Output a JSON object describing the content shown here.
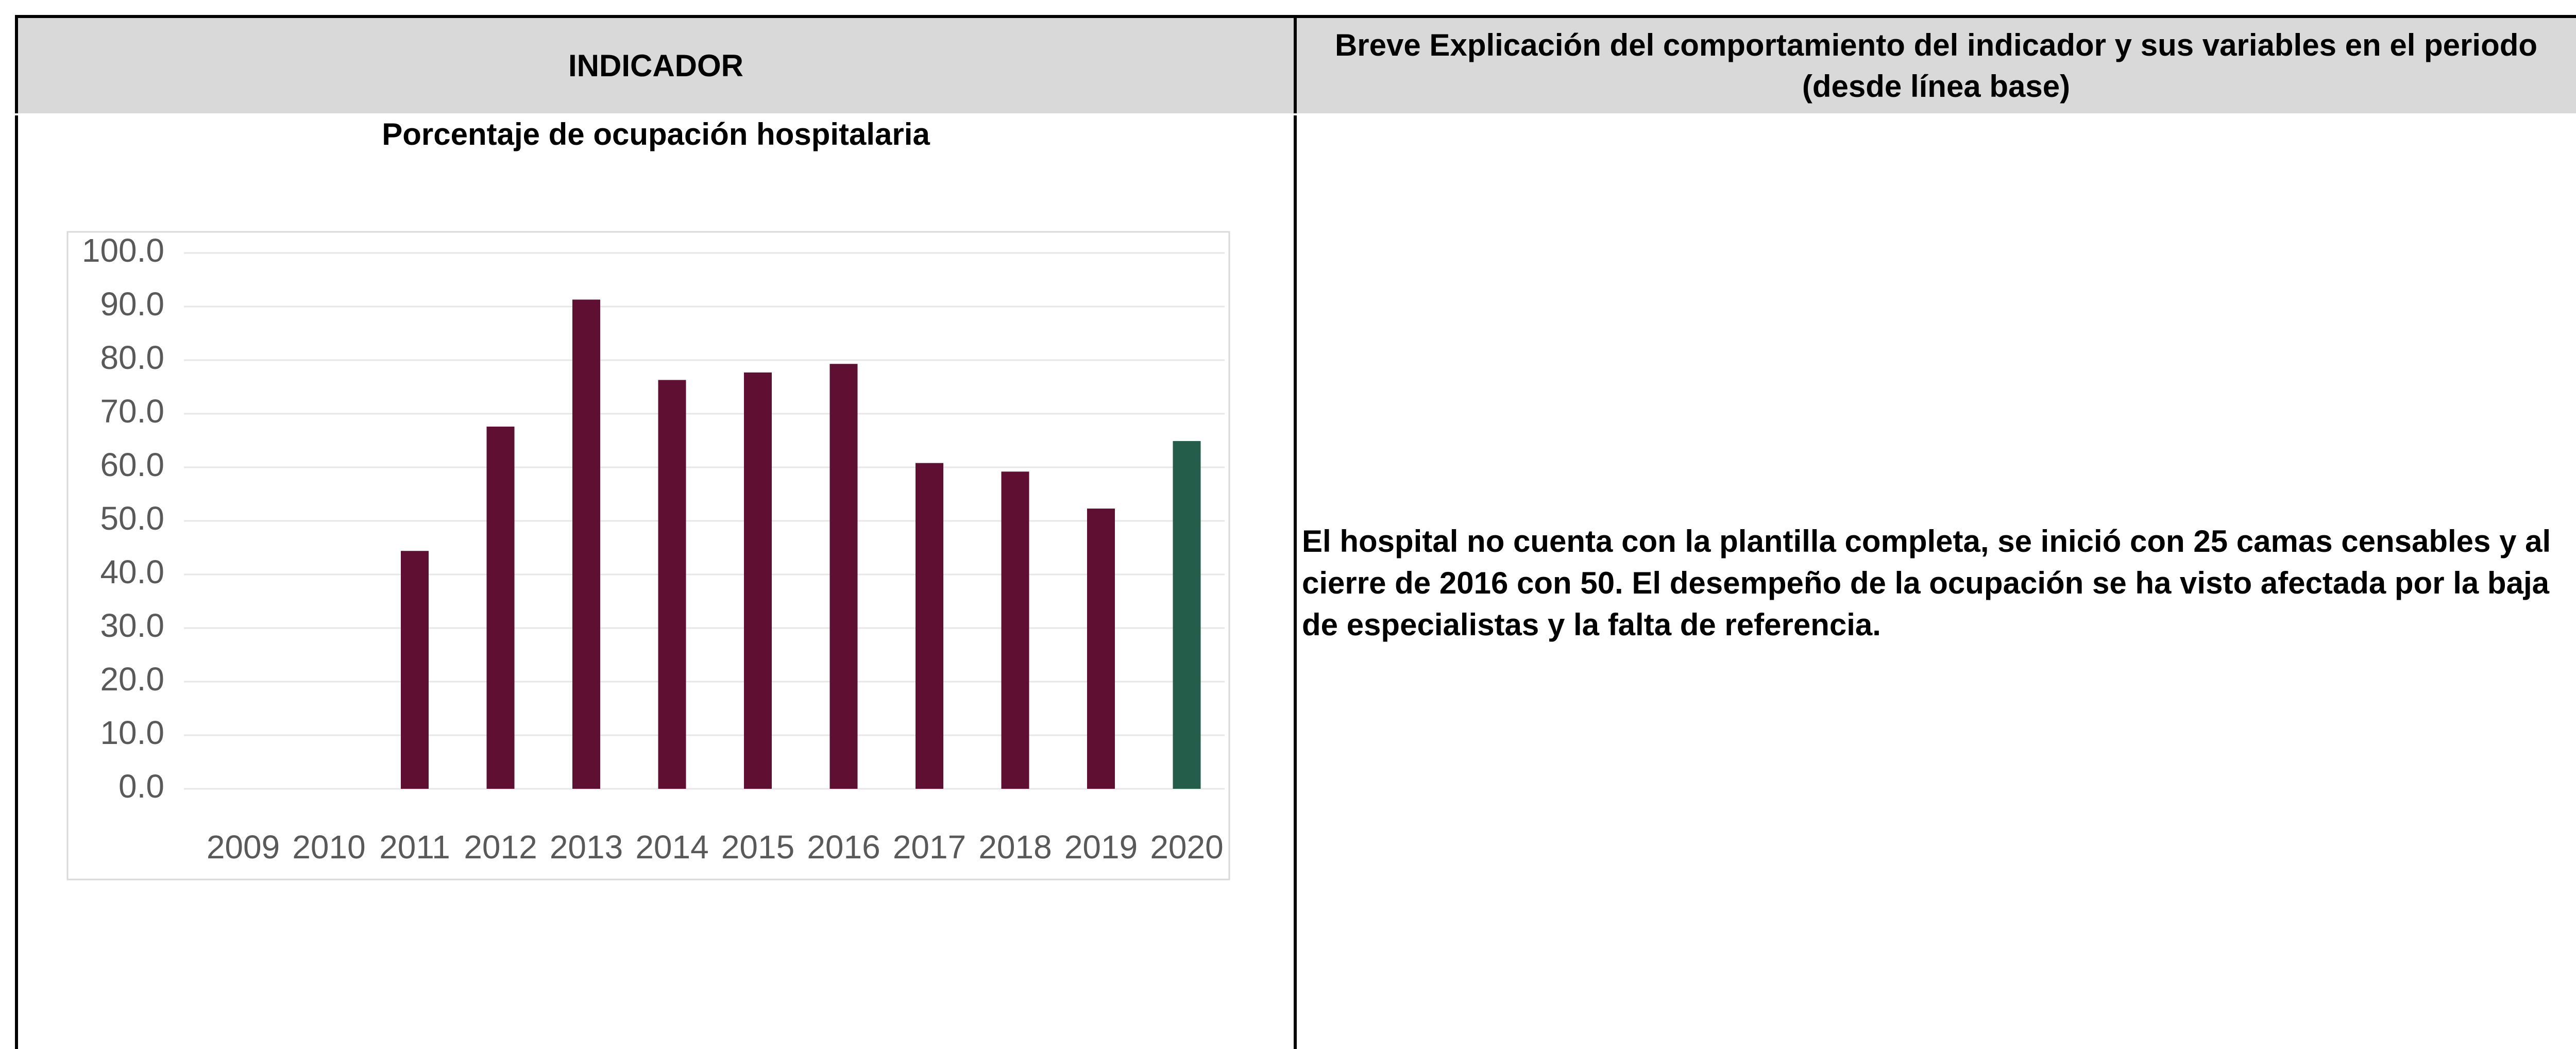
{
  "header": [
    "INDICADOR",
    "Breve Explicación del comportamiento del indicador y sus variables en el periodo (desde línea base)"
  ],
  "chart_data": {
    "type": "bar",
    "title": "Porcentaje de ocupación hospitalaria",
    "categories": [
      "2009",
      "2010",
      "2011",
      "2012",
      "2013",
      "2014",
      "2015",
      "2016",
      "2017",
      "2018",
      "2019",
      "2020"
    ],
    "values": [
      null,
      null,
      44.4,
      67.6,
      91.3,
      76.3,
      77.7,
      79.3,
      60.8,
      59.2,
      52.3,
      64.9
    ],
    "colors": [
      "#5f0f32",
      "#5f0f32",
      "#5f0f32",
      "#5f0f32",
      "#5f0f32",
      "#5f0f32",
      "#5f0f32",
      "#5f0f32",
      "#5f0f32",
      "#5f0f32",
      "#5f0f32",
      "#245e4a"
    ],
    "ylim": [
      0,
      100
    ],
    "yticks": [
      {
        "value": 0,
        "label": "0.0"
      },
      {
        "value": 10,
        "label": "10.0"
      },
      {
        "value": 20,
        "label": "20.0"
      },
      {
        "value": 30,
        "label": "30.0"
      },
      {
        "value": 40,
        "label": "40.0"
      },
      {
        "value": 50,
        "label": "50.0"
      },
      {
        "value": 60,
        "label": "60.0"
      },
      {
        "value": 70,
        "label": "70.0"
      },
      {
        "value": 80,
        "label": "80.0"
      },
      {
        "value": 90,
        "label": "90.0"
      },
      {
        "value": 100,
        "label": "100.0"
      }
    ],
    "grid": true
  },
  "explanation": "El hospital no cuenta con la plantilla completa, se inició con 25 camas censables y al cierre de 2016 con 50. El desempeño de la ocupación se ha visto afectada por la baja de especialistas y la falta de referencia."
}
